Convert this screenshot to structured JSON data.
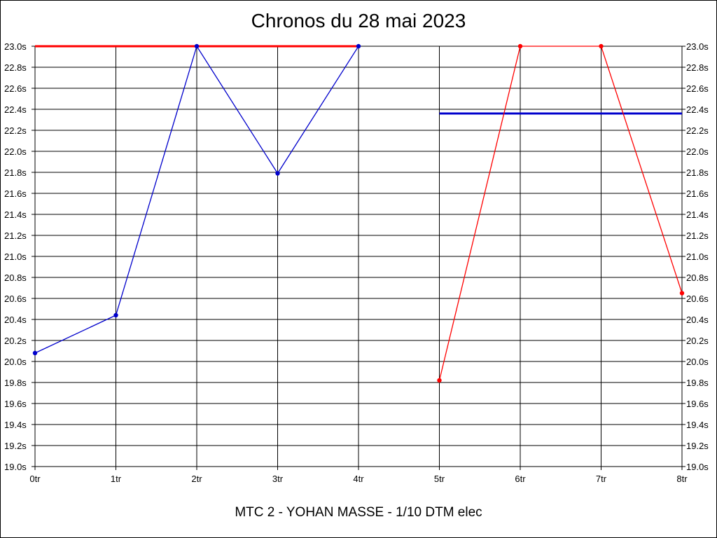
{
  "chart_data": {
    "type": "line",
    "title": "Chronos du 28 mai 2023",
    "subtitle": "MTC 2 - YOHAN MASSE - 1/10 DTM elec",
    "x_ticks": [
      "0tr",
      "1tr",
      "2tr",
      "3tr",
      "4tr",
      "5tr",
      "6tr",
      "7tr",
      "8tr"
    ],
    "xlim": [
      0,
      8
    ],
    "ylim": [
      19.0,
      23.0
    ],
    "y_ticks": [
      "19.0s",
      "19.2s",
      "19.4s",
      "19.6s",
      "19.8s",
      "20.0s",
      "20.2s",
      "20.4s",
      "20.6s",
      "20.8s",
      "21.0s",
      "21.2s",
      "21.4s",
      "21.6s",
      "21.8s",
      "22.0s",
      "22.2s",
      "22.4s",
      "22.6s",
      "22.8s",
      "23.0s"
    ],
    "y_tick_values": [
      19.0,
      19.2,
      19.4,
      19.6,
      19.8,
      20.0,
      20.2,
      20.4,
      20.6,
      20.8,
      21.0,
      21.2,
      21.4,
      21.6,
      21.8,
      22.0,
      22.2,
      22.4,
      22.6,
      22.8,
      23.0
    ],
    "grid": true,
    "series": [
      {
        "color": "#0000cc",
        "x": [
          0,
          1,
          2,
          3,
          4
        ],
        "y": [
          20.08,
          20.44,
          23.0,
          21.79,
          23.0
        ]
      },
      {
        "color": "#ff0000",
        "x": [
          5,
          6,
          7,
          8
        ],
        "y": [
          19.82,
          23.0,
          23.0,
          20.65
        ]
      }
    ],
    "reference_lines": [
      {
        "color": "#ff0000",
        "x": [
          0,
          4
        ],
        "y": 23.0
      },
      {
        "color": "#0000cc",
        "x": [
          5,
          8
        ],
        "y": 22.36
      }
    ]
  }
}
